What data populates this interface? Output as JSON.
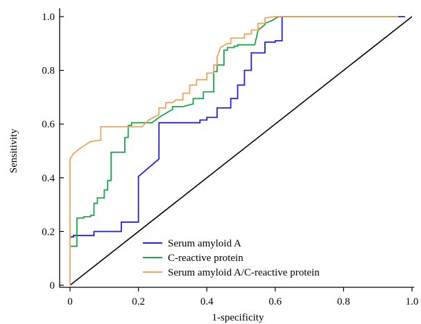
{
  "chart_data": {
    "type": "line",
    "title": "",
    "xlabel": "1-specificity",
    "ylabel": "Sensitivity",
    "xlim": [
      0,
      1.0
    ],
    "ylim": [
      0,
      1.0
    ],
    "x_ticks": [
      {
        "value": 0,
        "label": "0"
      },
      {
        "value": 0.2,
        "label": "0.2"
      },
      {
        "value": 0.4,
        "label": "0.4"
      },
      {
        "value": 0.6,
        "label": "0.6"
      },
      {
        "value": 0.8,
        "label": "0.8"
      },
      {
        "value": 1.0,
        "label": "1.0"
      }
    ],
    "y_ticks": [
      {
        "value": 0,
        "label": "0"
      },
      {
        "value": 0.2,
        "label": "0.2"
      },
      {
        "value": 0.4,
        "label": "0.4"
      },
      {
        "value": 0.6,
        "label": "0.6"
      },
      {
        "value": 0.8,
        "label": "0.8"
      },
      {
        "value": 1.0,
        "label": "1.0"
      }
    ],
    "grid": false,
    "legend_position": "bottom-right",
    "reference_line": {
      "x": [
        0,
        1.0
      ],
      "y": [
        0,
        1.0
      ],
      "color": "#000000"
    },
    "series": [
      {
        "name": "Serum amyloid A",
        "color": "#1f1fe6",
        "x": [
          0.0,
          0.0,
          0.01,
          0.01,
          0.07,
          0.07,
          0.15,
          0.15,
          0.2,
          0.2,
          0.26,
          0.26,
          0.38,
          0.38,
          0.4,
          0.4,
          0.43,
          0.43,
          0.47,
          0.47,
          0.49,
          0.49,
          0.51,
          0.51,
          0.53,
          0.53,
          0.57,
          0.57,
          0.6,
          0.6,
          0.62,
          0.62,
          0.98
        ],
        "y": [
          0.175,
          0.18,
          0.18,
          0.185,
          0.185,
          0.2,
          0.2,
          0.235,
          0.235,
          0.405,
          0.47,
          0.605,
          0.605,
          0.615,
          0.615,
          0.625,
          0.625,
          0.66,
          0.66,
          0.695,
          0.695,
          0.745,
          0.745,
          0.8,
          0.8,
          0.865,
          0.865,
          0.905,
          0.905,
          0.91,
          0.91,
          1.0,
          1.0
        ]
      },
      {
        "name": "C-reactive protein",
        "color": "#1aa64a",
        "x": [
          0.0,
          0.02,
          0.02,
          0.04,
          0.04,
          0.06,
          0.06,
          0.07,
          0.07,
          0.08,
          0.08,
          0.1,
          0.1,
          0.11,
          0.11,
          0.12,
          0.12,
          0.12,
          0.14,
          0.16,
          0.16,
          0.17,
          0.17,
          0.18,
          0.18,
          0.24,
          0.26,
          0.28,
          0.3,
          0.3,
          0.33,
          0.36,
          0.36,
          0.39,
          0.39,
          0.42,
          0.42,
          0.43,
          0.43,
          0.45,
          0.45,
          0.46,
          0.46,
          0.48,
          0.48,
          0.49,
          0.49,
          0.54,
          0.55,
          0.57,
          0.57,
          0.59,
          0.61,
          0.96
        ],
        "y": [
          0.145,
          0.145,
          0.25,
          0.25,
          0.255,
          0.255,
          0.26,
          0.26,
          0.305,
          0.305,
          0.325,
          0.325,
          0.355,
          0.355,
          0.39,
          0.39,
          0.45,
          0.495,
          0.495,
          0.495,
          0.55,
          0.55,
          0.595,
          0.595,
          0.605,
          0.605,
          0.625,
          0.64,
          0.655,
          0.665,
          0.665,
          0.675,
          0.695,
          0.695,
          0.72,
          0.72,
          0.795,
          0.795,
          0.82,
          0.82,
          0.875,
          0.875,
          0.885,
          0.885,
          0.89,
          0.89,
          0.895,
          0.895,
          0.95,
          0.97,
          0.975,
          0.985,
          1.0,
          1.0
        ]
      },
      {
        "name": "Serum amyloid A/C-reactive protein",
        "color": "#f0a35a",
        "x": [
          0.0,
          0.0,
          0.01,
          0.03,
          0.06,
          0.09,
          0.09,
          0.21,
          0.23,
          0.26,
          0.26,
          0.28,
          0.28,
          0.3,
          0.31,
          0.33,
          0.33,
          0.35,
          0.35,
          0.37,
          0.37,
          0.4,
          0.4,
          0.42,
          0.42,
          0.43,
          0.43,
          0.44,
          0.46,
          0.47,
          0.47,
          0.51,
          0.51,
          0.53,
          0.53,
          0.55,
          0.55,
          0.57,
          0.57,
          0.6,
          0.96
        ],
        "y": [
          0.0,
          0.47,
          0.49,
          0.51,
          0.535,
          0.54,
          0.59,
          0.59,
          0.615,
          0.635,
          0.66,
          0.66,
          0.68,
          0.68,
          0.69,
          0.69,
          0.715,
          0.715,
          0.745,
          0.745,
          0.765,
          0.765,
          0.79,
          0.79,
          0.82,
          0.82,
          0.85,
          0.885,
          0.9,
          0.9,
          0.92,
          0.92,
          0.935,
          0.935,
          0.95,
          0.95,
          0.975,
          0.975,
          0.995,
          1.0,
          1.0
        ]
      }
    ]
  }
}
